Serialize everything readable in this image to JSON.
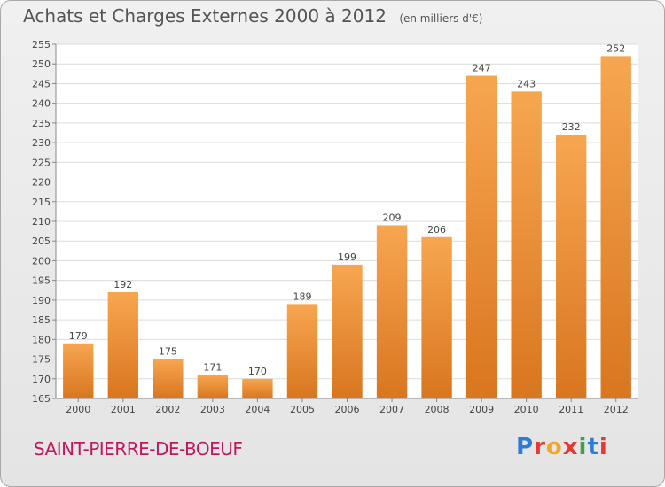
{
  "header": {
    "title": "Achats et Charges Externes 2000 à 2012",
    "unit": "(en milliers d'€)"
  },
  "footer": {
    "commune": "SAINT-PIERRE-DE-BOEUF",
    "logo": [
      "P",
      "r",
      "o",
      "x",
      "i",
      "t",
      "i"
    ]
  },
  "colors": {
    "bar_top": "#f7a650",
    "bar_bottom": "#d9761f",
    "commune": "#c2185b"
  },
  "chart_data": {
    "type": "bar",
    "title": "Achats et Charges Externes 2000 à 2012",
    "subtitle": "(en milliers d'€)",
    "categories": [
      "2000",
      "2001",
      "2002",
      "2003",
      "2004",
      "2005",
      "2006",
      "2007",
      "2008",
      "2009",
      "2010",
      "2011",
      "2012"
    ],
    "values": [
      179,
      192,
      175,
      171,
      170,
      189,
      199,
      209,
      206,
      247,
      243,
      232,
      252
    ],
    "ylim": [
      165,
      255
    ],
    "yticks": [
      165,
      170,
      175,
      180,
      185,
      190,
      195,
      200,
      205,
      210,
      215,
      220,
      225,
      230,
      235,
      240,
      245,
      250,
      255
    ],
    "grid": true
  }
}
